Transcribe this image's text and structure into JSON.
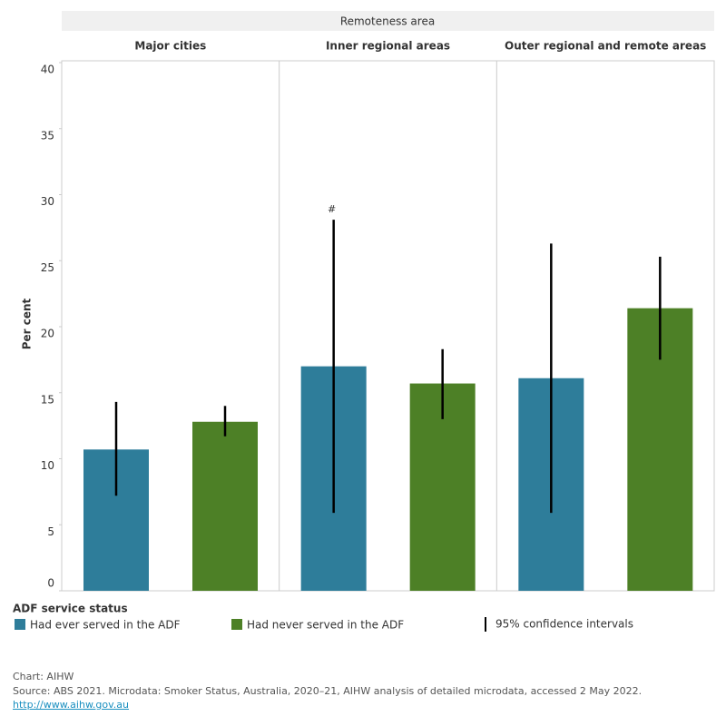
{
  "chart_data": {
    "type": "bar",
    "facet_title": "Remoteness area",
    "categories": [
      "Major cities",
      "Inner regional areas",
      "Outer regional and remote areas"
    ],
    "y_label": "Per cent",
    "ylim": [
      0,
      40
    ],
    "yticks": [
      0,
      5,
      10,
      15,
      20,
      25,
      30,
      35,
      40
    ],
    "series": [
      {
        "name": "Had ever served in the ADF",
        "color": "#2e7d9a",
        "values": [
          10.7,
          17.0,
          16.1
        ],
        "ci_low": [
          7.2,
          5.9,
          5.9
        ],
        "ci_high": [
          14.3,
          28.1,
          26.3
        ],
        "value_notes": [
          null,
          "#",
          null
        ]
      },
      {
        "name": "Had never served in the ADF",
        "color": "#4d8026",
        "values": [
          12.8,
          15.7,
          21.4
        ],
        "ci_low": [
          11.7,
          13.0,
          17.5
        ],
        "ci_high": [
          14.0,
          18.3,
          25.3
        ]
      }
    ],
    "legend_title": "ADF service status",
    "ci_label": "95% confidence intervals"
  },
  "footer": {
    "chart": "Chart: AIHW",
    "source": "Source: ABS 2021. Microdata: Smoker Status, Australia, 2020–21, AIHW analysis of detailed microdata, accessed 2 May 2022.",
    "link": "http://www.aihw.gov.au"
  }
}
